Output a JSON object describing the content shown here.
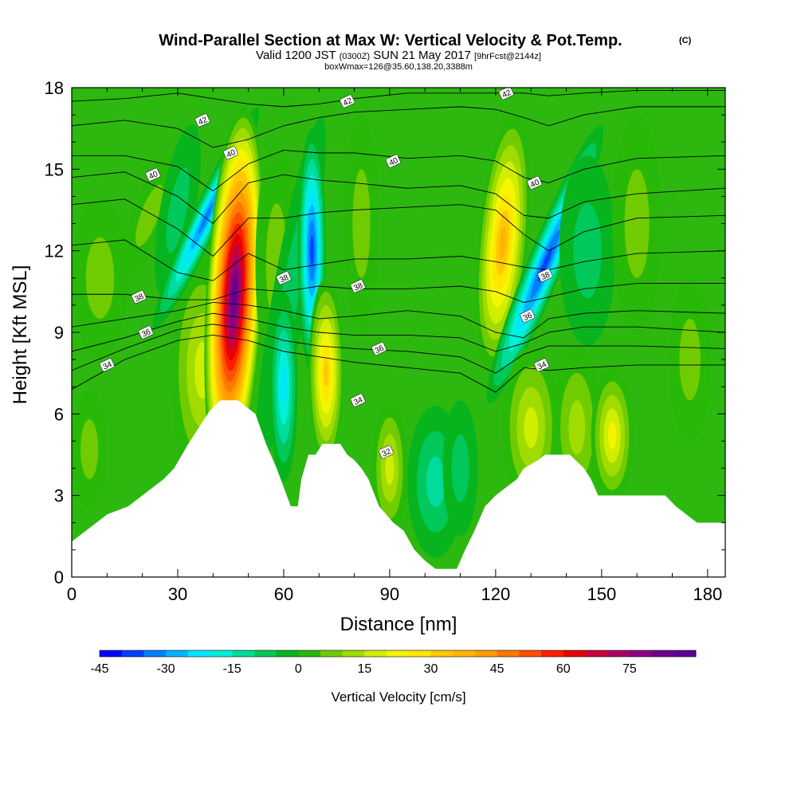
{
  "header": {
    "title": "Wind-Parallel Section at Max W: Vertical Velocity & Pot.Temp.",
    "copyright": "(C)",
    "valid_main_a": "Valid 1200 JST",
    "valid_utc": "(0300Z)",
    "valid_main_b": "SUN 21 May 2017",
    "forecast": "[9hrFcst@2144z]",
    "boxinfo": "boxWmax=126@35.60,138.20,3388m"
  },
  "chart_data": {
    "type": "heatmap",
    "xlabel": "Distance [nm]",
    "ylabel": "Height [Kft MSL]",
    "xlim": [
      0,
      185
    ],
    "ylim": [
      0,
      18
    ],
    "x_ticks": [
      0,
      30,
      60,
      90,
      120,
      150,
      180
    ],
    "y_ticks": [
      0,
      3,
      6,
      9,
      12,
      15,
      18
    ],
    "grid": false,
    "colorbar": {
      "label": "Vertical Velocity [cm/s]",
      "min": -45,
      "max": 90,
      "step": 5,
      "tick_labels": [
        -45,
        -30,
        -15,
        0,
        15,
        30,
        45,
        60,
        75
      ],
      "colors": [
        "#0000ff",
        "#0040ff",
        "#0080ff",
        "#00b4ff",
        "#00e6ff",
        "#00f0d8",
        "#00dc9c",
        "#00c85a",
        "#08b41e",
        "#28b808",
        "#70cc00",
        "#a0dc00",
        "#d2ee00",
        "#f5f500",
        "#ffe600",
        "#ffc800",
        "#ffb400",
        "#ff9c00",
        "#ff7800",
        "#ff5000",
        "#ff1e00",
        "#e60000",
        "#c8003c",
        "#aa0064",
        "#8c0082",
        "#6e008c",
        "#5a0096"
      ]
    },
    "terrain": [
      {
        "x": 0,
        "h": 1.3
      },
      {
        "x": 3,
        "h": 1.6
      },
      {
        "x": 6,
        "h": 1.9
      },
      {
        "x": 10,
        "h": 2.3
      },
      {
        "x": 16,
        "h": 2.6
      },
      {
        "x": 20,
        "h": 3.0
      },
      {
        "x": 26,
        "h": 3.6
      },
      {
        "x": 29,
        "h": 4.0
      },
      {
        "x": 33,
        "h": 4.9
      },
      {
        "x": 36,
        "h": 5.5
      },
      {
        "x": 39,
        "h": 6.1
      },
      {
        "x": 42,
        "h": 6.5
      },
      {
        "x": 47,
        "h": 6.5
      },
      {
        "x": 52,
        "h": 6.0
      },
      {
        "x": 55,
        "h": 4.9
      },
      {
        "x": 58,
        "h": 4.0
      },
      {
        "x": 60,
        "h": 3.3
      },
      {
        "x": 62,
        "h": 2.6
      },
      {
        "x": 64,
        "h": 2.6
      },
      {
        "x": 65,
        "h": 3.6
      },
      {
        "x": 67,
        "h": 4.5
      },
      {
        "x": 69,
        "h": 4.5
      },
      {
        "x": 71,
        "h": 4.9
      },
      {
        "x": 76,
        "h": 4.9
      },
      {
        "x": 78,
        "h": 4.5
      },
      {
        "x": 80,
        "h": 4.3
      },
      {
        "x": 82,
        "h": 4.0
      },
      {
        "x": 84,
        "h": 3.6
      },
      {
        "x": 87,
        "h": 2.6
      },
      {
        "x": 89,
        "h": 2.3
      },
      {
        "x": 91,
        "h": 2.0
      },
      {
        "x": 94,
        "h": 1.7
      },
      {
        "x": 97,
        "h": 1.0
      },
      {
        "x": 100,
        "h": 0.6
      },
      {
        "x": 103,
        "h": 0.3
      },
      {
        "x": 109,
        "h": 0.3
      },
      {
        "x": 111,
        "h": 0.9
      },
      {
        "x": 114,
        "h": 1.7
      },
      {
        "x": 117,
        "h": 2.6
      },
      {
        "x": 120,
        "h": 3.0
      },
      {
        "x": 123,
        "h": 3.3
      },
      {
        "x": 126,
        "h": 3.6
      },
      {
        "x": 128,
        "h": 4.0
      },
      {
        "x": 132,
        "h": 4.3
      },
      {
        "x": 134,
        "h": 4.5
      },
      {
        "x": 141,
        "h": 4.5
      },
      {
        "x": 145,
        "h": 4.0
      },
      {
        "x": 147,
        "h": 3.6
      },
      {
        "x": 149,
        "h": 3.0
      },
      {
        "x": 168,
        "h": 3.0
      },
      {
        "x": 171,
        "h": 2.6
      },
      {
        "x": 174,
        "h": 2.3
      },
      {
        "x": 177,
        "h": 2.0
      },
      {
        "x": 185,
        "h": 2.0
      }
    ],
    "theta_labels": [
      {
        "value": "42",
        "x": 37,
        "y": 16.8
      },
      {
        "value": "42",
        "x": 78,
        "y": 17.5
      },
      {
        "value": "42",
        "x": 123,
        "y": 17.8
      },
      {
        "value": "40",
        "x": 45,
        "y": 15.6
      },
      {
        "value": "40",
        "x": 23,
        "y": 14.8
      },
      {
        "value": "40",
        "x": 91,
        "y": 15.3
      },
      {
        "value": "40",
        "x": 131,
        "y": 14.5
      },
      {
        "value": "38",
        "x": 60,
        "y": 11.0
      },
      {
        "value": "38",
        "x": 19,
        "y": 10.3
      },
      {
        "value": "38",
        "x": 81,
        "y": 10.7
      },
      {
        "value": "38",
        "x": 134,
        "y": 11.1
      },
      {
        "value": "36",
        "x": 21,
        "y": 9.0
      },
      {
        "value": "36",
        "x": 87,
        "y": 8.4
      },
      {
        "value": "36",
        "x": 129,
        "y": 9.6
      },
      {
        "value": "34",
        "x": 10,
        "y": 7.8
      },
      {
        "value": "34",
        "x": 81,
        "y": 6.5
      },
      {
        "value": "34",
        "x": 133,
        "y": 7.8
      },
      {
        "value": "32",
        "x": 89,
        "y": 4.6
      }
    ]
  }
}
